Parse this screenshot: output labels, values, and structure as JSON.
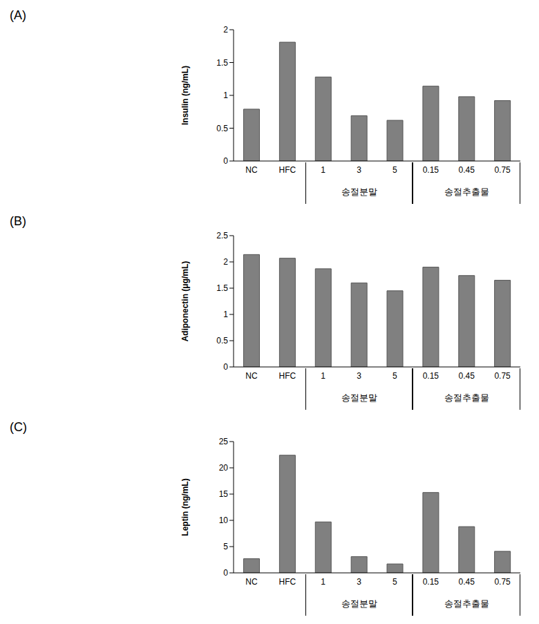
{
  "chart_data": [
    {
      "type": "bar",
      "title": "(A)",
      "y_label": "Insulin (ng/mL)",
      "categories": [
        "NC",
        "HFC",
        "1",
        "3",
        "5",
        "0.15",
        "0.45",
        "0.75"
      ],
      "values": [
        0.79,
        1.81,
        1.28,
        0.69,
        0.62,
        1.14,
        0.98,
        0.92
      ],
      "groups": [
        {
          "label": "송절분말",
          "categories": [
            "1",
            "3",
            "5"
          ]
        },
        {
          "label": "송절추출물",
          "categories": [
            "0.15",
            "0.45",
            "0.75"
          ]
        }
      ],
      "color": "#808080",
      "ylim": [
        0,
        2
      ],
      "yticks": [
        0,
        0.5,
        1,
        1.5,
        2
      ],
      "grid": false
    },
    {
      "type": "bar",
      "title": "(B)",
      "y_label": "Adiponectin (μg/mL)",
      "categories": [
        "NC",
        "HFC",
        "1",
        "3",
        "5",
        "0.15",
        "0.45",
        "0.75"
      ],
      "values": [
        2.14,
        2.07,
        1.87,
        1.6,
        1.45,
        1.9,
        1.74,
        1.65
      ],
      "groups": [
        {
          "label": "송절분말",
          "categories": [
            "1",
            "3",
            "5"
          ]
        },
        {
          "label": "송절추출물",
          "categories": [
            "0.15",
            "0.45",
            "0.75"
          ]
        }
      ],
      "color": "#808080",
      "ylim": [
        0,
        2.5
      ],
      "yticks": [
        0,
        0.5,
        1,
        1.5,
        2,
        2.5
      ],
      "grid": false
    },
    {
      "type": "bar",
      "title": "(C)",
      "y_label": "Leptin (ng/mL)",
      "categories": [
        "NC",
        "HFC",
        "1",
        "3",
        "5",
        "0.15",
        "0.45",
        "0.75"
      ],
      "values": [
        2.7,
        22.4,
        9.7,
        3.1,
        1.7,
        15.3,
        8.8,
        4.1
      ],
      "groups": [
        {
          "label": "송절분말",
          "categories": [
            "1",
            "3",
            "5"
          ]
        },
        {
          "label": "송절추출물",
          "categories": [
            "0.15",
            "0.45",
            "0.75"
          ]
        }
      ],
      "color": "#808080",
      "ylim": [
        0,
        25
      ],
      "yticks": [
        0,
        5,
        10,
        15,
        20,
        25
      ],
      "grid": false
    }
  ]
}
